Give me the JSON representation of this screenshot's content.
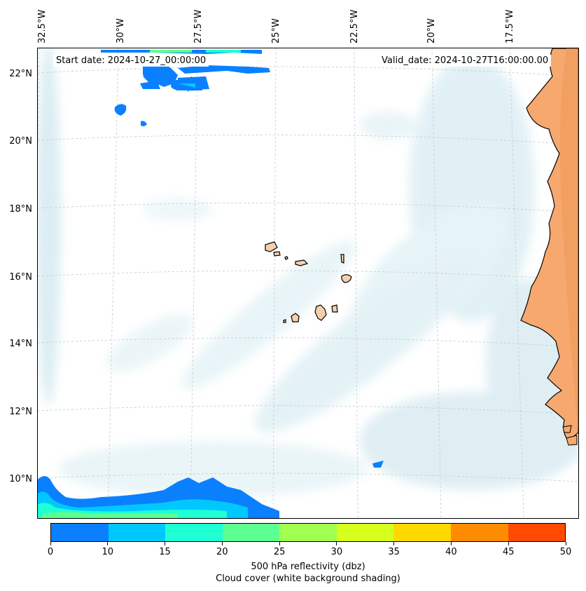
{
  "map": {
    "start_date": "Start date: 2024-10-27_00:00:00",
    "valid_date": "Valid_date: 2024-10-27T16:00:00.00",
    "lon_labels": [
      "32.5°W",
      "30°W",
      "27.5°W",
      "25°W",
      "22.5°W",
      "20°W",
      "17.5°W"
    ],
    "lat_labels": [
      "22°N",
      "20°N",
      "18°N",
      "16°N",
      "14°N",
      "12°N",
      "10°N"
    ]
  },
  "colorbar": {
    "ticks": [
      "0",
      "10",
      "15",
      "20",
      "25",
      "30",
      "35",
      "40",
      "45",
      "50"
    ],
    "colors": [
      "#0a80ff",
      "#00c8ff",
      "#1effd4",
      "#5cff90",
      "#a0ff50",
      "#d6ff1e",
      "#ffd800",
      "#ff8c00",
      "#ff4a00"
    ],
    "label_line1": "500 hPa reflectivity (dbz)",
    "label_line2": "Cloud cover (white background shading)"
  },
  "colors": {
    "land": "#f6a86e",
    "cloud": "#bfe0ea",
    "border": "#000000"
  }
}
